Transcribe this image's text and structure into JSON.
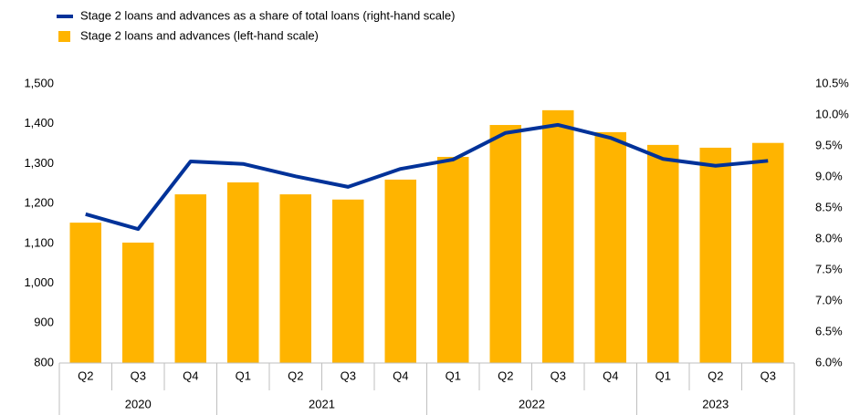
{
  "chart_data": {
    "type": "bar_line",
    "categories": [
      "Q2",
      "Q3",
      "Q4",
      "Q1",
      "Q2",
      "Q3",
      "Q4",
      "Q1",
      "Q2",
      "Q3",
      "Q4",
      "Q1",
      "Q2",
      "Q3"
    ],
    "category_years": [
      "2020",
      "2020",
      "2020",
      "2021",
      "2021",
      "2021",
      "2021",
      "2022",
      "2022",
      "2022",
      "2022",
      "2023",
      "2023",
      "2023"
    ],
    "series": [
      {
        "name": "Stage 2 loans and advances as a share of total loans (right-hand scale)",
        "type": "line",
        "axis": "y2",
        "color": "#003299",
        "values": [
          8.4,
          8.16,
          9.25,
          9.21,
          9.01,
          8.84,
          9.13,
          9.28,
          9.71,
          9.84,
          9.63,
          9.29,
          9.18,
          9.26
        ]
      },
      {
        "name": "Stage 2 loans and advances (left-hand scale)",
        "type": "bar",
        "axis": "y",
        "color": "#ffb400",
        "values": [
          1152,
          1102,
          1223,
          1253,
          1223,
          1210,
          1260,
          1317,
          1397,
          1434,
          1379,
          1347,
          1340,
          1352
        ]
      }
    ],
    "ylim": [
      800,
      1500
    ],
    "yticks": [
      800,
      900,
      {
        "value": 1000,
        "label": "1,000"
      },
      {
        "value": 1100,
        "label": "1,100"
      },
      {
        "value": 1200,
        "label": "1,200"
      },
      {
        "value": 1300,
        "label": "1,300"
      },
      {
        "value": 1400,
        "label": "1,400"
      },
      {
        "value": 1500,
        "label": "1,500"
      }
    ],
    "y2lim": [
      6.0,
      10.5
    ],
    "y2ticks": [
      {
        "value": 6.0,
        "label": "6.0%"
      },
      {
        "value": 6.5,
        "label": "6.5%"
      },
      {
        "value": 7.0,
        "label": "7.0%"
      },
      {
        "value": 7.5,
        "label": "7.5%"
      },
      {
        "value": 8.0,
        "label": "8.0%"
      },
      {
        "value": 8.5,
        "label": "8.5%"
      },
      {
        "value": 9.0,
        "label": "9.0%"
      },
      {
        "value": 9.5,
        "label": "9.5%"
      },
      {
        "value": 10.0,
        "label": "10.0%"
      },
      {
        "value": 10.5,
        "label": "10.5%"
      }
    ],
    "grid": false
  }
}
